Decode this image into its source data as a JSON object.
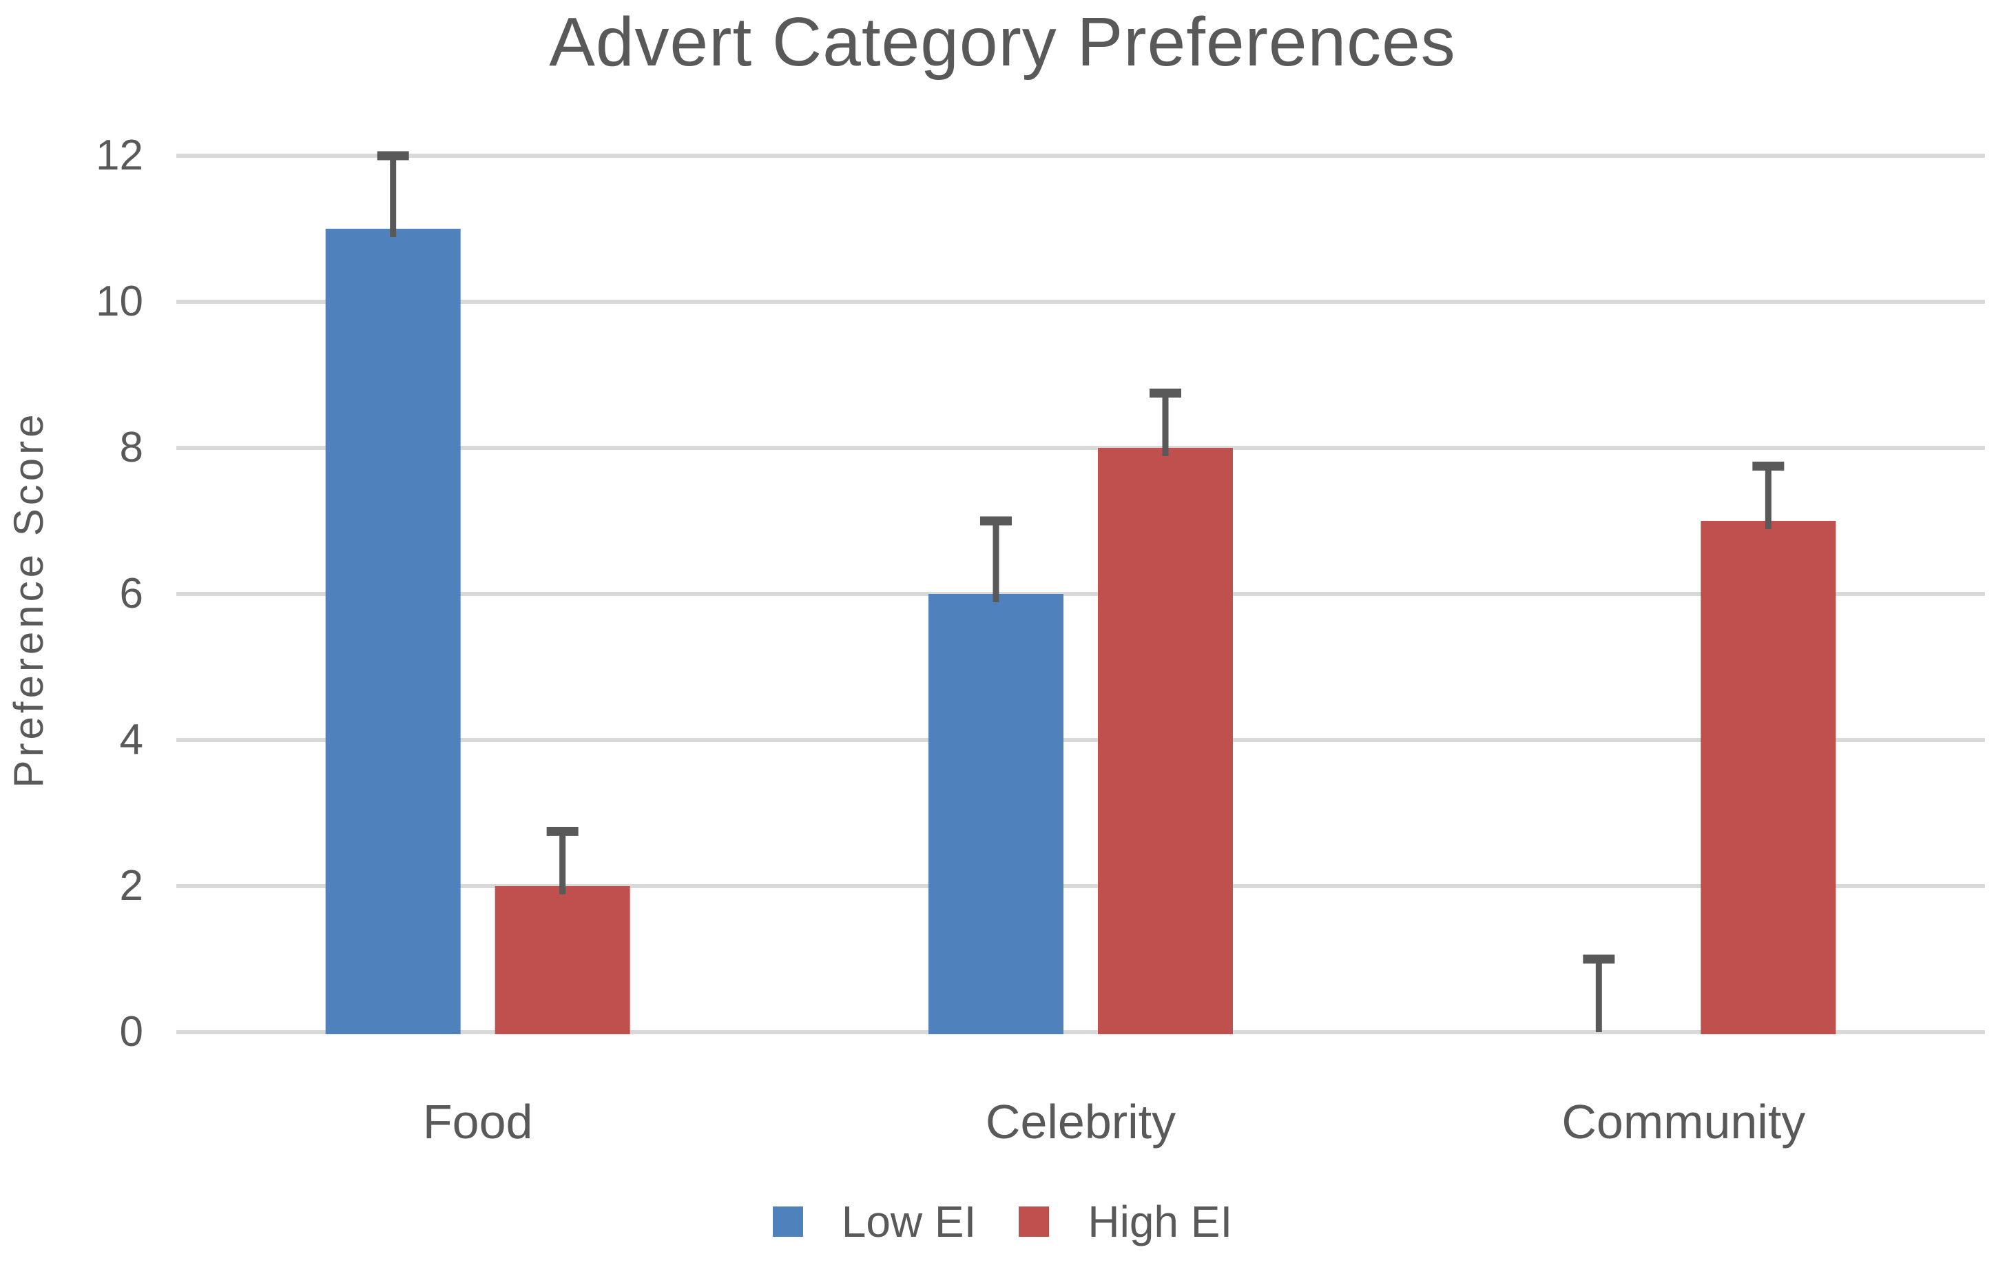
{
  "chart_data": {
    "type": "bar",
    "title": "Advert Category Preferences",
    "ylabel": "Preference Score",
    "xlabel": "",
    "categories": [
      "Food",
      "Celebrity",
      "Community"
    ],
    "series": [
      {
        "name": "Low EI",
        "color": "#4F81BD",
        "values": [
          11,
          6,
          0
        ],
        "errors_plus": [
          1,
          1,
          1
        ]
      },
      {
        "name": "High EI",
        "color": "#C0504D",
        "values": [
          2,
          8,
          7
        ],
        "errors_plus": [
          0.75,
          0.75,
          0.75
        ]
      }
    ],
    "ylim": [
      0,
      12
    ],
    "yticks": [
      0,
      2,
      4,
      6,
      8,
      10,
      12
    ],
    "grid": true,
    "legend_position": "bottom",
    "gridline_color": "#D9D9D9",
    "axis_line_color": "#D9D9D9",
    "error_bar_color": "#595959",
    "text_color": "#595959"
  }
}
